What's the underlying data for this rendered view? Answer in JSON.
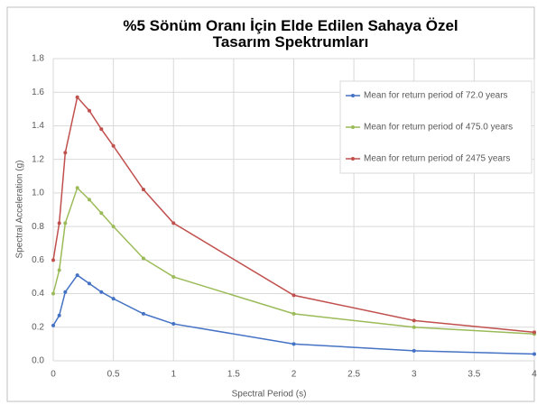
{
  "chart_data": {
    "type": "line",
    "title": "%5 Sönüm Oranı İçin Elde Edilen Sahaya Özel Tasarım Spektrumları",
    "x_label": "Spectral Period (s)",
    "y_label": "Spectral Acceleration (g)",
    "x": [
      0,
      0.05,
      0.1,
      0.2,
      0.3,
      0.4,
      0.5,
      0.75,
      1,
      2,
      3,
      4
    ],
    "series": [
      {
        "name": "Mean for return period of 72.0 years",
        "color": "#4472c4",
        "values": [
          0.21,
          0.27,
          0.41,
          0.51,
          0.46,
          0.41,
          0.37,
          0.28,
          0.22,
          0.1,
          0.06,
          0.04
        ]
      },
      {
        "name": "Mean for return period of 475.0 years",
        "color": "#9bbb59",
        "values": [
          0.4,
          0.54,
          0.82,
          1.03,
          0.96,
          0.88,
          0.8,
          0.61,
          0.5,
          0.28,
          0.2,
          0.16
        ]
      },
      {
        "name": "Mean for return period of 2475 years",
        "color": "#c0504d",
        "values": [
          0.6,
          0.82,
          1.24,
          1.57,
          1.49,
          1.38,
          1.28,
          1.02,
          0.82,
          0.39,
          0.24,
          0.17
        ]
      }
    ],
    "xlim": [
      0,
      4
    ],
    "xticks": [
      0,
      0.5,
      1,
      1.5,
      2,
      2.5,
      3,
      3.5,
      4
    ],
    "ylim": [
      0,
      1.8
    ],
    "yticks": [
      {
        "value": 0,
        "label": "0.0"
      },
      0.2,
      0.4,
      0.6,
      0.8,
      {
        "value": 1,
        "label": "1.0"
      },
      1.2,
      1.4,
      1.6,
      1.8
    ],
    "grid": true,
    "legend": "upper right"
  }
}
